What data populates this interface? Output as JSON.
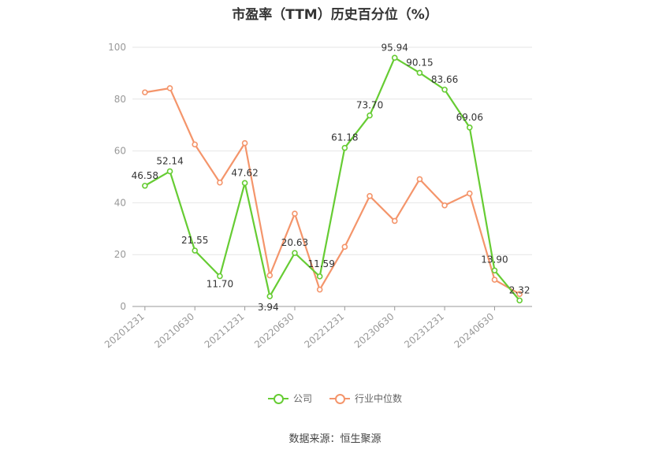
{
  "chart_data": {
    "type": "line",
    "title": "市盈率（TTM）历史百分位（%）",
    "x": [
      "20201231",
      "20210331",
      "20210630",
      "20210930",
      "20211231",
      "20220331",
      "20220630",
      "20220930",
      "20221231",
      "20230331",
      "20230630",
      "20230930",
      "20231231",
      "20240331",
      "20240630",
      "20240930"
    ],
    "x_tick_labels": [
      "20201231",
      "20210630",
      "20211231",
      "20220630",
      "20221231",
      "20230630",
      "20231231",
      "20240630"
    ],
    "ylim": [
      0,
      100
    ],
    "y_ticks": [
      0,
      20,
      40,
      60,
      80,
      100
    ],
    "grid": true,
    "legend_position": "bottom",
    "series": [
      {
        "name": "公司",
        "color": "#66cc33",
        "values": [
          46.58,
          52.14,
          21.55,
          11.7,
          47.62,
          3.94,
          20.63,
          11.59,
          61.18,
          73.7,
          95.94,
          90.15,
          83.66,
          69.06,
          13.9,
          2.32
        ],
        "labels": [
          "46.58",
          "52.14",
          "21.55",
          "11.70",
          "47.62",
          "3.94",
          "20.63",
          "11.59",
          "61.18",
          "73.70",
          "95.94",
          "90.15",
          "83.66",
          "69.06",
          "13.90",
          "2.32"
        ]
      },
      {
        "name": "行业中位数",
        "color": "#f4956b",
        "values": [
          82.6,
          84.2,
          62.5,
          47.8,
          63.0,
          12.0,
          35.8,
          6.5,
          23.0,
          42.6,
          33.0,
          49.1,
          39.0,
          43.6,
          10.3,
          4.8
        ]
      }
    ],
    "source": "数据来源：恒生聚源"
  }
}
